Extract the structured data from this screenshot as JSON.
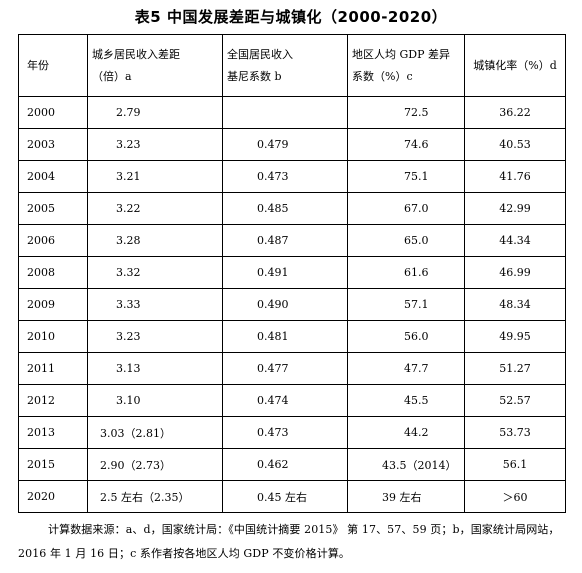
{
  "title": "表5   中国发展差距与城镇化（2000-2020）",
  "headers": {
    "year": "年份",
    "income_gap_l1": "城乡居民收入差距",
    "income_gap_l2": "（倍）a",
    "gini_l1": "全国居民收入",
    "gini_l2": "基尼系数 b",
    "regional_l1": "地区人均 GDP 差异",
    "regional_l2": "系数（%）c",
    "urban": "城镇化率（%）d"
  },
  "rows": [
    {
      "year": "2000",
      "income_gap": "2.79",
      "gini": "",
      "regional": "72.5",
      "urban": "36.22"
    },
    {
      "year": "2003",
      "income_gap": "3.23",
      "gini": "0.479",
      "regional": "74.6",
      "urban": "40.53"
    },
    {
      "year": "2004",
      "income_gap": "3.21",
      "gini": "0.473",
      "regional": "75.1",
      "urban": "41.76"
    },
    {
      "year": "2005",
      "income_gap": "3.22",
      "gini": "0.485",
      "regional": "67.0",
      "urban": "42.99"
    },
    {
      "year": "2006",
      "income_gap": "3.28",
      "gini": "0.487",
      "regional": "65.0",
      "urban": "44.34"
    },
    {
      "year": "2008",
      "income_gap": "3.32",
      "gini": "0.491",
      "regional": "61.6",
      "urban": "46.99"
    },
    {
      "year": "2009",
      "income_gap": "3.33",
      "gini": "0.490",
      "regional": "57.1",
      "urban": "48.34"
    },
    {
      "year": "2010",
      "income_gap": "3.23",
      "gini": "0.481",
      "regional": "56.0",
      "urban": "49.95"
    },
    {
      "year": "2011",
      "income_gap": "3.13",
      "gini": "0.477",
      "regional": "47.7",
      "urban": "51.27"
    },
    {
      "year": "2012",
      "income_gap": "3.10",
      "gini": "0.474",
      "regional": "45.5",
      "urban": "52.57"
    },
    {
      "year": "2013",
      "income_gap": "3.03（2.81）",
      "gini": "0.473",
      "regional": "44.2",
      "urban": "53.73"
    },
    {
      "year": "2015",
      "income_gap": "2.90（2.73）",
      "gini": "0.462",
      "regional": "43.5（2014）",
      "urban": "56.1"
    },
    {
      "year": "2020",
      "income_gap": "2.5 左右（2.35）",
      "gini": "0.45 左右",
      "regional": "39 左右",
      "urban": "＞60"
    }
  ],
  "note": "计算数据来源：a、d，国家统计局：《中国统计摘要 2015》 第 17、57、59 页；b，国家统计局网站，2016 年 1 月 16 日；c 系作者按各地区人均 GDP 不变价格计算。"
}
